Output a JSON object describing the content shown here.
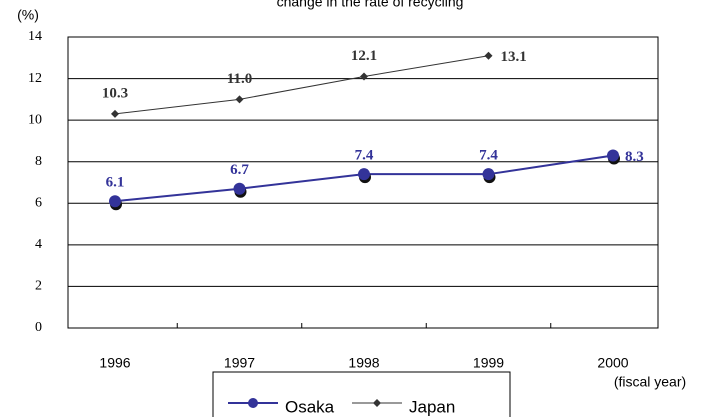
{
  "chart_data": {
    "type": "line",
    "title": "change in the rate of recycling",
    "y_label": "(%)",
    "x_label": "(fiscal year)",
    "categories": [
      "1996",
      "1997",
      "1998",
      "1999",
      "2000"
    ],
    "series": [
      {
        "name": "Osaka",
        "color": "#333399",
        "marker": "circle",
        "values": [
          6.1,
          6.7,
          7.4,
          7.4,
          8.3
        ]
      },
      {
        "name": "Japan",
        "color": "#333333",
        "marker": "diamond",
        "values": [
          10.3,
          11.0,
          12.1,
          13.1,
          null
        ],
        "value_labels": [
          "10.3",
          "11.0",
          "12.1",
          "13.1",
          null
        ]
      }
    ],
    "ylim": [
      0,
      14
    ],
    "yticks": [
      0,
      2,
      4,
      6,
      8,
      10,
      12,
      14
    ],
    "grid": true,
    "legend": "bottom"
  }
}
